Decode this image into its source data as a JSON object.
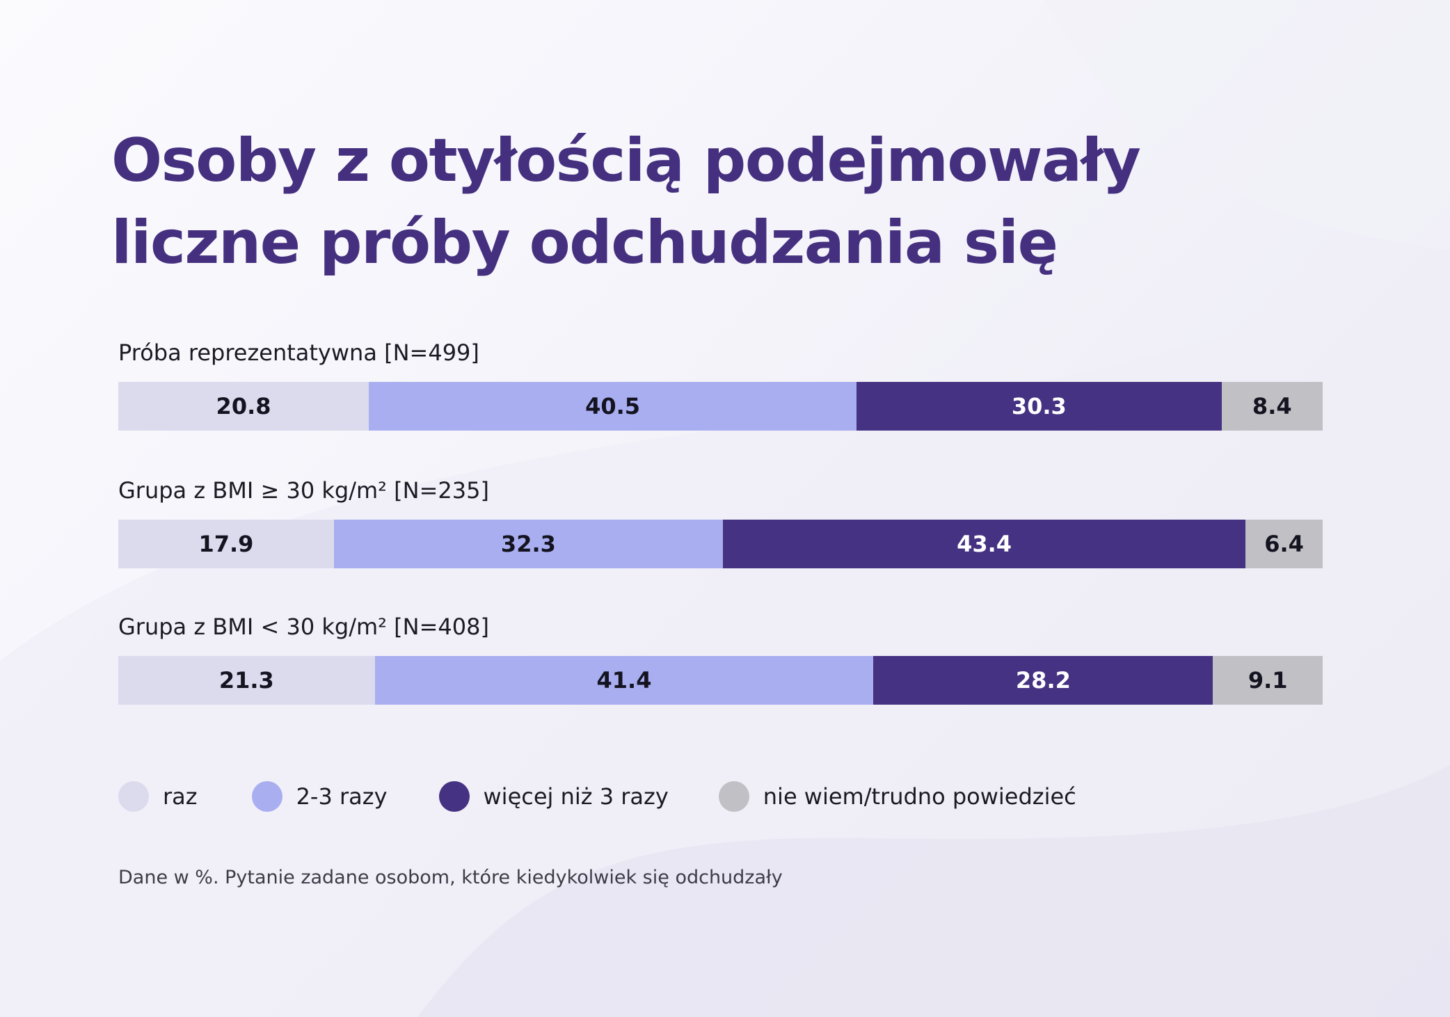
{
  "title_lines": [
    "Osoby z otyłością podejmowały",
    "liczne próby odchudzania się"
  ],
  "footnote": "Dane w %. Pytanie zadane osobom, które kiedykolwiek się odchudzały",
  "colors": {
    "title": "#45307f",
    "raz": "#dcdbee",
    "razy_2_3": "#a9aef0",
    "wiecej": "#453282",
    "nie_wiem": "#c1c0c5"
  },
  "chart_data": {
    "type": "bar",
    "orientation": "horizontal",
    "stacked": true,
    "title": "Osoby z otyłością podejmowały liczne próby odchudzania się",
    "unit": "%",
    "categories": [
      "Próba reprezentatywna [N=499]",
      "Grupa z BMI ≥ 30 kg/m² [N=235]",
      "Grupa z BMI < 30 kg/m² [N=408]"
    ],
    "series": [
      {
        "name": "raz",
        "color": "#dcdbee",
        "values": [
          20.8,
          17.9,
          21.3
        ]
      },
      {
        "name": "2-3 razy",
        "color": "#a9aef0",
        "values": [
          40.5,
          32.3,
          41.4
        ]
      },
      {
        "name": "więcej niż 3 razy",
        "color": "#453282",
        "values": [
          30.3,
          43.4,
          28.2
        ]
      },
      {
        "name": "nie wiem/trudno powiedzieć",
        "color": "#c1c0c5",
        "values": [
          8.4,
          6.4,
          9.1
        ]
      }
    ],
    "legend_position": "bottom-left",
    "grid": false
  }
}
